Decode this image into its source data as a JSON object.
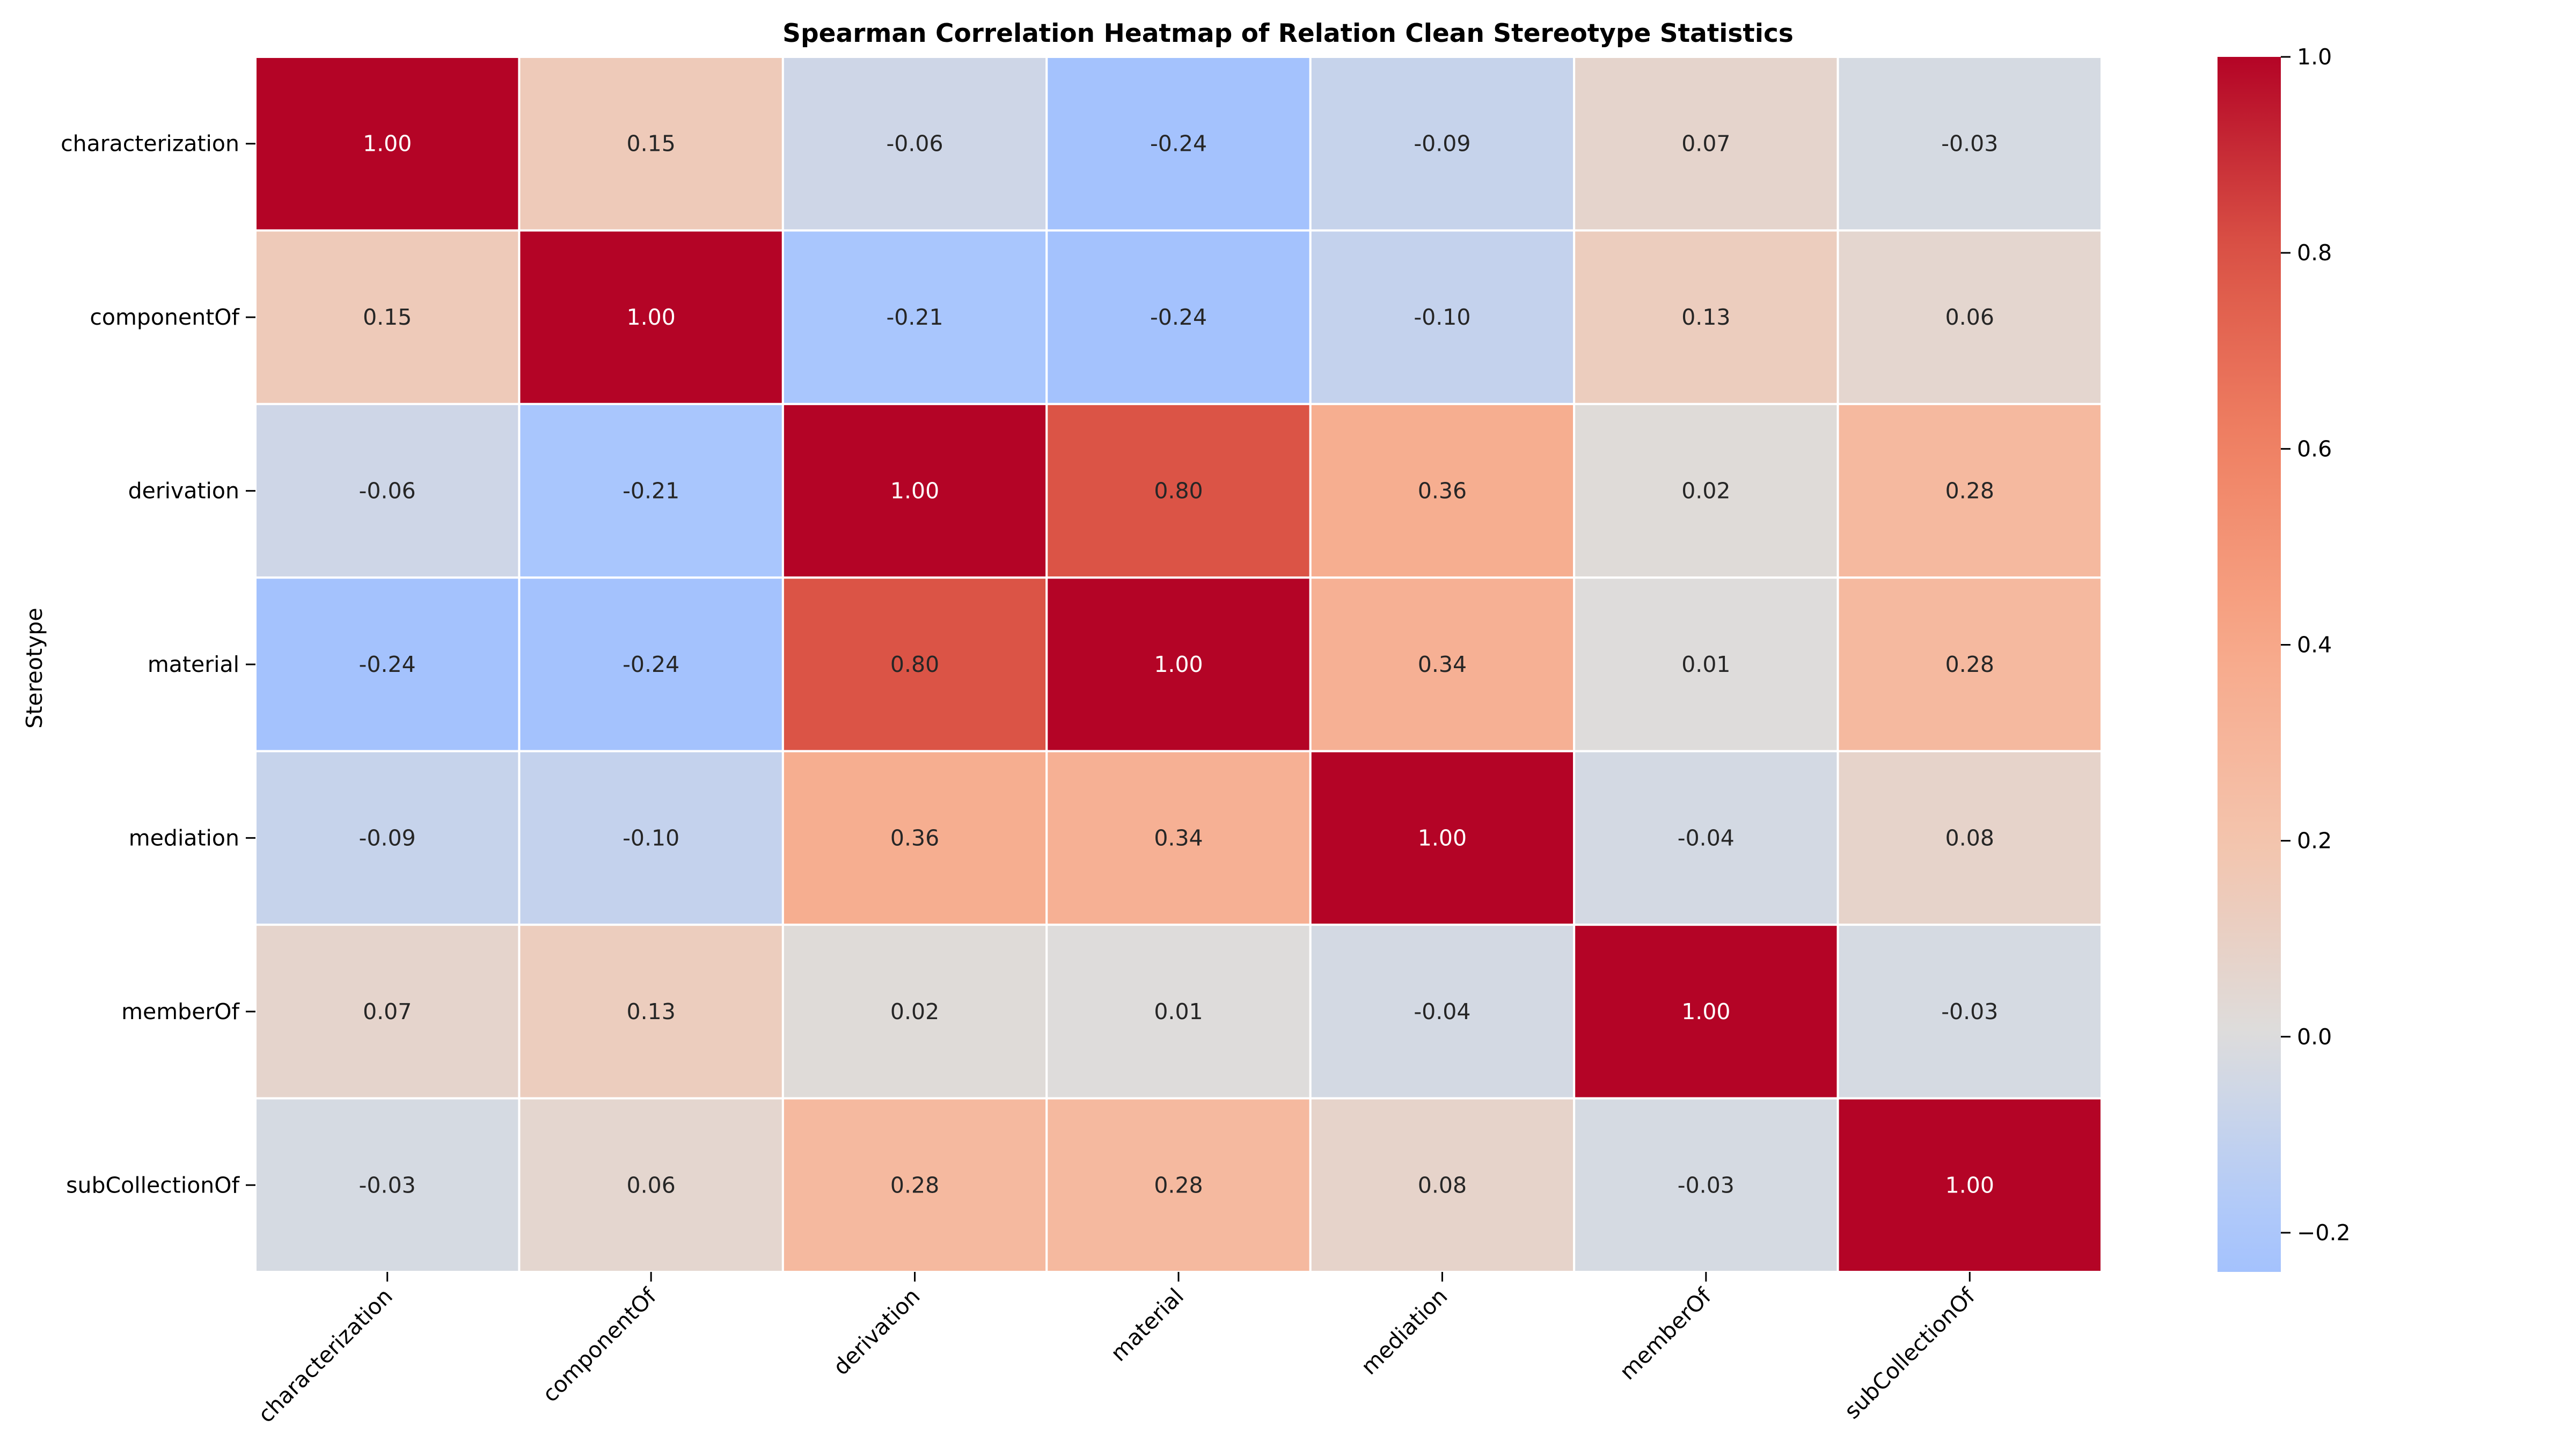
{
  "chart_data": {
    "type": "heatmap",
    "title": "Spearman Correlation Heatmap of Relation Clean Stereotype Statistics",
    "xlabel": "",
    "ylabel": "Stereotype",
    "x_categories": [
      "characterization",
      "componentOf",
      "derivation",
      "material",
      "mediation",
      "memberOf",
      "subCollectionOf"
    ],
    "y_categories": [
      "characterization",
      "componentOf",
      "derivation",
      "material",
      "mediation",
      "memberOf",
      "subCollectionOf"
    ],
    "values": [
      [
        1.0,
        0.15,
        -0.06,
        -0.24,
        -0.09,
        0.07,
        -0.03
      ],
      [
        0.15,
        1.0,
        -0.21,
        -0.24,
        -0.1,
        0.13,
        0.06
      ],
      [
        -0.06,
        -0.21,
        1.0,
        0.8,
        0.36,
        0.02,
        0.28
      ],
      [
        -0.24,
        -0.24,
        0.8,
        1.0,
        0.34,
        0.01,
        0.28
      ],
      [
        -0.09,
        -0.1,
        0.36,
        0.34,
        1.0,
        -0.04,
        0.08
      ],
      [
        0.07,
        0.13,
        0.02,
        0.01,
        -0.04,
        1.0,
        -0.03
      ],
      [
        -0.03,
        0.06,
        0.28,
        0.28,
        0.08,
        -0.03,
        1.0
      ]
    ],
    "annotation_format": "0.00",
    "colormap": "coolwarm",
    "center": 0.0,
    "vmin": -0.24,
    "vmax": 1.0,
    "colorbar_ticks": [
      1.0,
      0.8,
      0.6,
      0.4,
      0.2,
      0.0,
      -0.2
    ],
    "colorbar_tick_labels": [
      "1.0",
      "0.8",
      "0.6",
      "0.4",
      "0.2",
      "0.0",
      "−0.2"
    ],
    "grid": true,
    "grid_color": "#ffffff"
  }
}
